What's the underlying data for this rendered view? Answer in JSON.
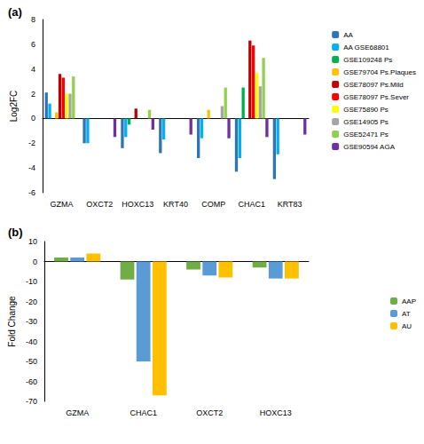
{
  "chart_data": [
    {
      "type": "bar",
      "title": "(a)",
      "y_label": "Log2FC",
      "categories": [
        "GZMA",
        "OXCT2",
        "HOXC13",
        "KRT40",
        "COMP",
        "CHAC1",
        "KRT83"
      ],
      "series": [
        {
          "name": "AA",
          "color": "#2E75B6",
          "values": [
            2.1,
            -2.0,
            -2.4,
            -2.8,
            -3.2,
            -4.3,
            -4.9
          ]
        },
        {
          "name": "AA GSE68801",
          "color": "#00B0F0",
          "values": [
            1.2,
            -2.0,
            -1.5,
            -1.7,
            -1.6,
            -3.2,
            -2.9
          ]
        },
        {
          "name": "GSE109248 Ps",
          "color": "#00B050",
          "values": [
            null,
            null,
            -0.5,
            null,
            null,
            2.5,
            null
          ]
        },
        {
          "name": "GSE79704 Ps.Plaques",
          "color": "#FFC000",
          "values": [
            0.5,
            null,
            null,
            null,
            0.7,
            null,
            null
          ]
        },
        {
          "name": "GSE78097 Ps.Mild",
          "color": "#C00000",
          "values": [
            3.6,
            null,
            0.8,
            null,
            null,
            6.3,
            null
          ]
        },
        {
          "name": "GSE78097 Ps.Sever",
          "color": "#FF0000",
          "values": [
            3.3,
            null,
            null,
            null,
            null,
            5.9,
            null
          ]
        },
        {
          "name": "GSE75890 Ps",
          "color": "#FFFF00",
          "values": [
            2.0,
            null,
            null,
            null,
            null,
            3.7,
            null
          ]
        },
        {
          "name": "GSE14905 Ps",
          "color": "#A5A5A5",
          "values": [
            2.0,
            null,
            null,
            null,
            1.0,
            2.6,
            null
          ]
        },
        {
          "name": "GSE52471 Ps",
          "color": "#92D050",
          "values": [
            3.4,
            null,
            0.7,
            null,
            2.5,
            4.9,
            null
          ]
        },
        {
          "name": "GSE90594 AGA",
          "color": "#7030A0",
          "values": [
            null,
            -1.5,
            -0.9,
            -1.3,
            -1.6,
            -1.5,
            -1.3
          ]
        }
      ],
      "ylim": [
        -6,
        8
      ],
      "yticks": [
        -6,
        -4,
        -2,
        0,
        2,
        4,
        6,
        8
      ],
      "grid": false,
      "legend": "right"
    },
    {
      "type": "bar",
      "title": "(b)",
      "y_label": "Fold Change",
      "categories": [
        "GZMA",
        "CHAC1",
        "OXCT2",
        "HOXC13"
      ],
      "series": [
        {
          "name": "AAP",
          "color": "#70AD47",
          "values": [
            2,
            -9,
            -4,
            -3
          ]
        },
        {
          "name": "AT",
          "color": "#5B9BD5",
          "values": [
            2,
            -50,
            -7,
            -8.5
          ]
        },
        {
          "name": "AU",
          "color": "#FFC000",
          "values": [
            4,
            -67,
            -8,
            -8.5
          ]
        }
      ],
      "ylim": [
        -70,
        10
      ],
      "yticks": [
        -70,
        -60,
        -50,
        -40,
        -30,
        -20,
        -10,
        0,
        10
      ],
      "grid": false,
      "legend": "right"
    }
  ]
}
